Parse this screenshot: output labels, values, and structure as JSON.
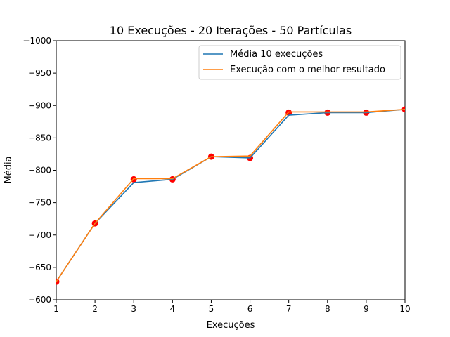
{
  "chart_data": {
    "type": "line",
    "title": "10 Execuções - 20 Iterações - 50 Partículas",
    "xlabel": "Execuções",
    "ylabel": "Média",
    "x": [
      1,
      2,
      3,
      4,
      5,
      6,
      7,
      8,
      9,
      10
    ],
    "xlim": [
      1,
      10
    ],
    "ylim": [
      -600,
      -1000
    ],
    "y_axis_inverted": true,
    "x_ticks": [
      "1",
      "2",
      "3",
      "4",
      "5",
      "6",
      "7",
      "8",
      "9",
      "10"
    ],
    "y_ticks": [
      -1000,
      -950,
      -900,
      -850,
      -800,
      -750,
      -700,
      -650,
      -600
    ],
    "y_tick_labels": [
      "−1000",
      "−950",
      "−900",
      "−850",
      "−800",
      "−750",
      "−700",
      "−650",
      "−600"
    ],
    "grid": false,
    "legend_position": "top-right",
    "series": [
      {
        "name": "Média 10 execuções",
        "color": "#1f77b4",
        "values": [
          -628,
          -718,
          -781,
          -786,
          -821,
          -819,
          -885,
          -889,
          -889,
          -894
        ]
      },
      {
        "name": "Execução com o melhor resultado",
        "color": "#ff7f0e",
        "values": [
          -628,
          -718,
          -787,
          -787,
          -821,
          -822,
          -890,
          -890,
          -890,
          -894
        ]
      }
    ],
    "markers": {
      "color": "#ff0000",
      "values": [
        -628,
        -718,
        -786,
        -786,
        -821,
        -819,
        -889,
        -889,
        -889,
        -894
      ]
    }
  }
}
